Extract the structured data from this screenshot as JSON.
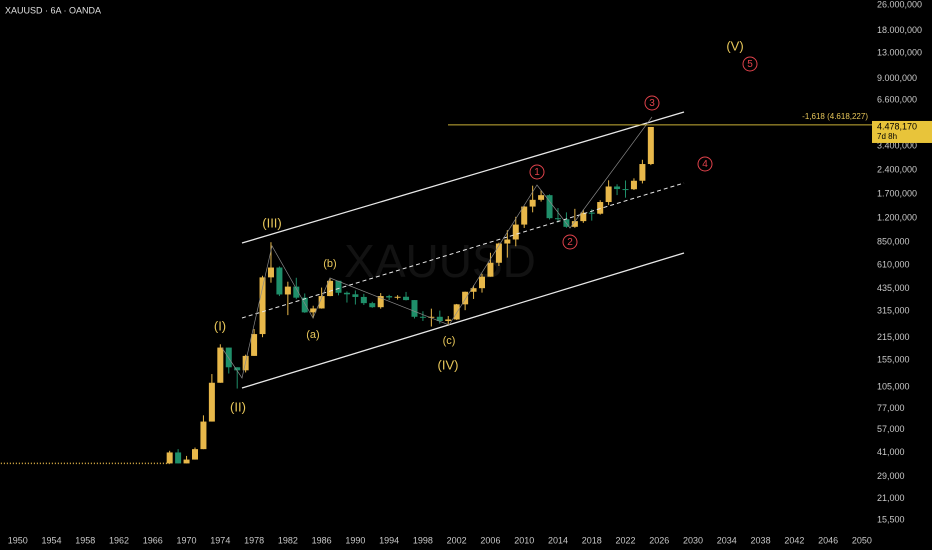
{
  "header": "XAUUSD · 6A · OANDA",
  "watermark": "XAUUSD",
  "chart_data": {
    "type": "candlestick",
    "log_scale": true,
    "grid": false,
    "up_color": "#e8b84a",
    "down_color": "#1f8f6a",
    "x": [
      1968,
      1969,
      1970,
      1971,
      1972,
      1973,
      1974,
      1975,
      1976,
      1977,
      1978,
      1979,
      1980,
      1981,
      1982,
      1983,
      1984,
      1985,
      1986,
      1987,
      1988,
      1989,
      1990,
      1991,
      1992,
      1993,
      1994,
      1995,
      1996,
      1997,
      1998,
      1999,
      2000,
      2001,
      2002,
      2003,
      2004,
      2005,
      2006,
      2007,
      2008,
      2009,
      2010,
      2011,
      2012,
      2013,
      2014,
      2015,
      2016,
      2017,
      2018,
      2019,
      2020,
      2021,
      2022,
      2023,
      2024,
      2025
    ],
    "open": [
      35,
      41,
      35,
      37,
      43,
      64,
      112,
      186,
      140,
      134,
      165,
      226,
      512,
      590,
      400,
      448,
      382,
      309,
      327,
      391,
      487,
      410,
      401,
      386,
      353,
      333,
      391,
      383,
      387,
      369,
      290,
      288,
      290,
      273,
      279,
      347,
      416,
      438,
      517,
      632,
      834,
      884,
      1096,
      1421,
      1566,
      1675,
      1202,
      1184,
      1061,
      1152,
      1302,
      1282,
      1517,
      1898,
      1829,
      1824,
      2062,
      2624
    ],
    "high": [
      42,
      43,
      39,
      44,
      70,
      127,
      195,
      186,
      140,
      168,
      243,
      524,
      850,
      599,
      481,
      509,
      406,
      340,
      442,
      502,
      487,
      418,
      424,
      404,
      360,
      408,
      398,
      396,
      415,
      369,
      314,
      326,
      317,
      293,
      349,
      417,
      456,
      538,
      730,
      845,
      1011,
      1226,
      1431,
      1921,
      1796,
      1694,
      1392,
      1307,
      1375,
      1357,
      1366,
      1557,
      2075,
      1959,
      2070,
      2135,
      2790,
      4478
    ],
    "low": [
      35,
      35,
      35,
      37,
      43,
      64,
      112,
      128,
      103,
      130,
      165,
      216,
      474,
      391,
      297,
      374,
      307,
      284,
      326,
      390,
      395,
      356,
      346,
      344,
      330,
      326,
      369,
      372,
      367,
      283,
      273,
      252,
      263,
      255,
      277,
      319,
      375,
      411,
      517,
      603,
      681,
      802,
      1044,
      1308,
      1527,
      1180,
      1131,
      1046,
      1046,
      1124,
      1160,
      1266,
      1451,
      1677,
      1615,
      1804,
      1984,
      2584
    ],
    "close": [
      41,
      35,
      37,
      43,
      64,
      112,
      186,
      140,
      134,
      165,
      226,
      512,
      590,
      400,
      448,
      382,
      309,
      327,
      391,
      487,
      410,
      401,
      386,
      353,
      333,
      391,
      383,
      387,
      369,
      290,
      288,
      290,
      273,
      279,
      347,
      416,
      438,
      517,
      632,
      834,
      884,
      1096,
      1421,
      1566,
      1675,
      1202,
      1184,
      1061,
      1152,
      1302,
      1282,
      1517,
      1898,
      1829,
      1824,
      2062,
      2624,
      4478
    ],
    "early_line": {
      "x": [
        1948,
        1968
      ],
      "values": [
        35,
        35
      ]
    },
    "xlim": [
      1947.9,
      2051.2
    ],
    "ylim": [
      13.4,
      27940
    ],
    "xticks": [
      1950,
      1954,
      1958,
      1962,
      1966,
      1970,
      1974,
      1978,
      1982,
      1986,
      1990,
      1994,
      1998,
      2002,
      2006,
      2010,
      2014,
      2018,
      2022,
      2026,
      2030,
      2034,
      2038,
      2042,
      2046,
      2050
    ],
    "yticks": [
      {
        "value": 26000,
        "label": "26.000,000"
      },
      {
        "value": 18000,
        "label": "18.000,000"
      },
      {
        "value": 13000,
        "label": "13.000,000"
      },
      {
        "value": 9000,
        "label": "9.000,000"
      },
      {
        "value": 6600,
        "label": "6.600,000"
      },
      {
        "value": 3400,
        "label": "3.400,000"
      },
      {
        "value": 2400,
        "label": "2.400,000"
      },
      {
        "value": 1700,
        "label": "1.700,000"
      },
      {
        "value": 1200,
        "label": "1.200,000"
      },
      {
        "value": 850,
        "label": "850,000"
      },
      {
        "value": 610,
        "label": "610,000"
      },
      {
        "value": 435,
        "label": "435,000"
      },
      {
        "value": 315,
        "label": "315,000"
      },
      {
        "value": 215,
        "label": "215,000"
      },
      {
        "value": 155,
        "label": "155,000"
      },
      {
        "value": 105,
        "label": "105,000"
      },
      {
        "value": 77,
        "label": "77,000"
      },
      {
        "value": 57,
        "label": "57,000"
      },
      {
        "value": 41,
        "label": "41,000"
      },
      {
        "value": 29,
        "label": "29,000"
      },
      {
        "value": 21,
        "label": "21,000"
      },
      {
        "value": 15.5,
        "label": "15,500"
      }
    ],
    "last_price": {
      "value": 4478.17,
      "label": "4.478,170"
    },
    "countdown": "7d 8h",
    "fib_level": {
      "value": 4618.227,
      "label": "-1,618 (4.618,227)"
    },
    "annotations": {
      "primary": [
        "(I)",
        "(II)",
        "(III)",
        "(IV)",
        "(V)"
      ],
      "correction": [
        "(a)",
        "(b)",
        "(c)"
      ],
      "minor": [
        "1",
        "2",
        "3",
        "4",
        "5"
      ]
    }
  }
}
